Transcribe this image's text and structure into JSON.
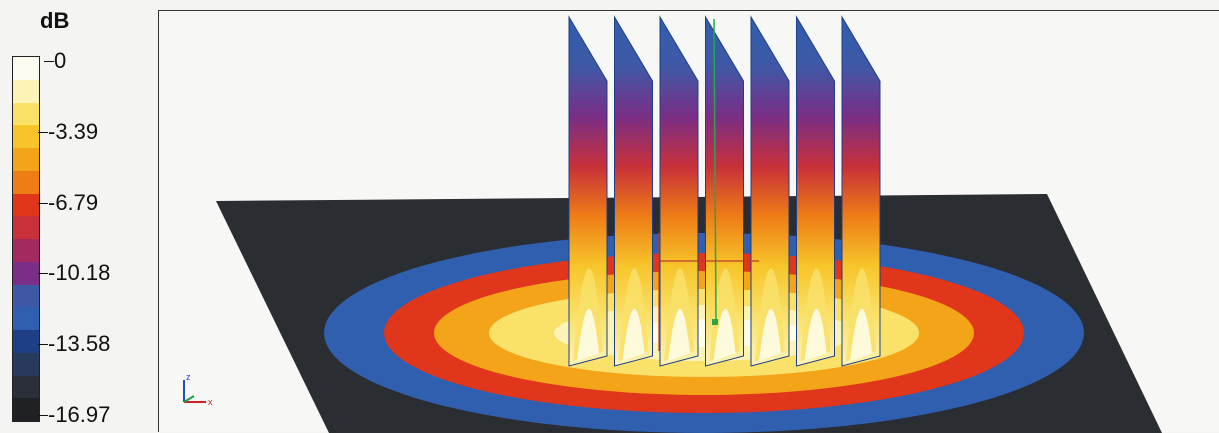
{
  "legend": {
    "unit": "dB",
    "ticks": [
      {
        "label": "0",
        "frac": 0.0
      },
      {
        "label": "-3.39",
        "frac": 0.2
      },
      {
        "label": "-6.79",
        "frac": 0.4
      },
      {
        "label": "-10.18",
        "frac": 0.6
      },
      {
        "label": "-13.58",
        "frac": 0.8
      },
      {
        "label": "-16.97",
        "frac": 1.0
      }
    ],
    "colors": [
      "#fbfbf0",
      "#fbf3b8",
      "#f9e16a",
      "#f7c52a",
      "#f4a418",
      "#ee7d16",
      "#e0361c",
      "#c8303a",
      "#a22a5e",
      "#7a2e86",
      "#3f58a6",
      "#2f5fae",
      "#1e3f86",
      "#273a5c",
      "#2b3038",
      "#1f2125"
    ]
  },
  "scene": {
    "plane_color": "#2a2d31",
    "fin_count": 7,
    "contour_colors": [
      "#2f5fae",
      "#e0361c",
      "#f4a418",
      "#f9e16a",
      "#fbf3b8"
    ]
  },
  "axis_triad": {
    "z_label": "z",
    "x_label": "x"
  }
}
